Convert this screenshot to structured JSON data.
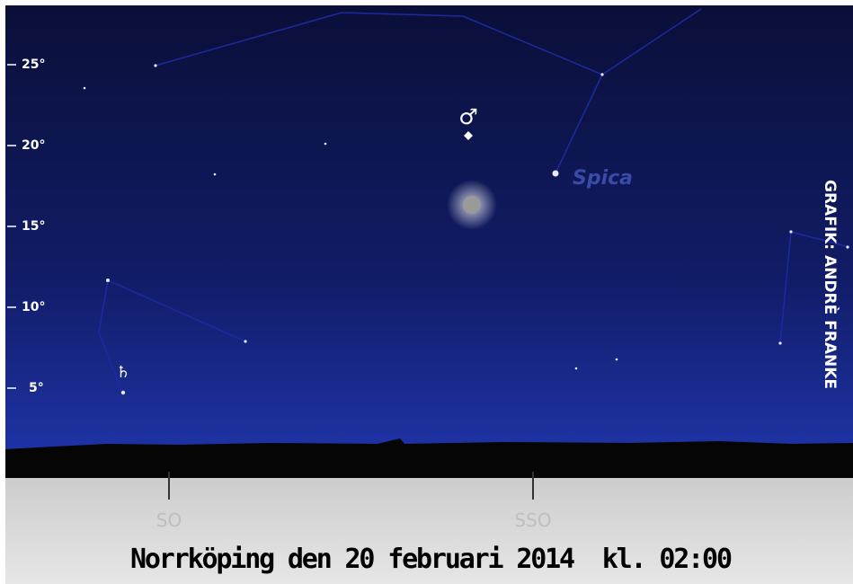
{
  "altitude_labels": [
    "25°",
    "20°",
    "15°",
    "10°",
    "5°"
  ],
  "directions": [
    "SO",
    "SSO"
  ],
  "objects": {
    "mars_symbol": "♂",
    "saturn_symbol": "♄",
    "star_name": "Spica"
  },
  "title": "Norrköping den 20 februari 2014  kl. 02:00",
  "credit": "GRAFIK: ANDRÈ FRANKE"
}
